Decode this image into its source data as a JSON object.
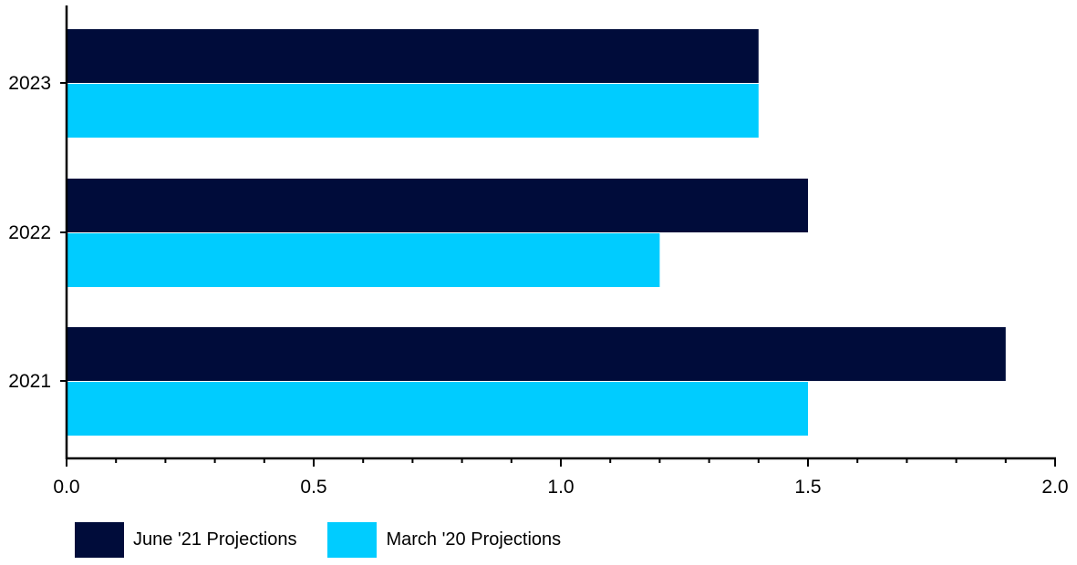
{
  "chart_data": {
    "type": "bar",
    "orientation": "horizontal",
    "categories": [
      "2021",
      "2022",
      "2023"
    ],
    "series": [
      {
        "name": "June '21 Projections",
        "values": [
          1.9,
          1.5,
          1.4
        ],
        "color": "#000C3A"
      },
      {
        "name": "March '20 Projections",
        "values": [
          1.5,
          1.2,
          1.4
        ],
        "color": "#00CCFF"
      }
    ],
    "xlim": [
      0,
      2.0
    ],
    "x_ticks": [
      "0.0",
      "0.5",
      "1.0",
      "1.5",
      "2.0"
    ],
    "title": "",
    "xlabel": "",
    "ylabel": "",
    "grid": false,
    "legend_position": "bottom-left"
  }
}
